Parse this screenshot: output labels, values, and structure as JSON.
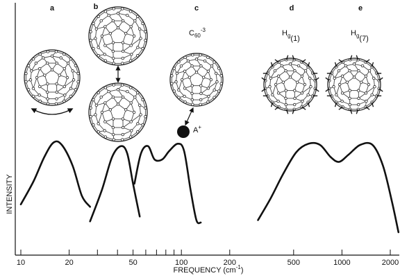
{
  "chart_data": {
    "type": "line",
    "x_label": {
      "text": "FREQUENCY (cm",
      "sup": "-1",
      "end": ")"
    },
    "y_label": "INTENSITY",
    "xscale": "log",
    "xlim": [
      10,
      2300
    ],
    "ylim": [
      0,
      1
    ],
    "xticks": [
      10,
      20,
      50,
      100,
      200,
      500,
      1000,
      2000
    ],
    "xminorticks": [
      30,
      40,
      60,
      70,
      80,
      90
    ],
    "color": "#111111",
    "series": [
      {
        "x": [
          10,
          12,
          14,
          16,
          18,
          21,
          24,
          27
        ],
        "values": [
          0.43,
          0.62,
          0.82,
          0.94,
          0.92,
          0.75,
          0.5,
          0.41
        ]
      },
      {
        "x": [
          27,
          32,
          37,
          42,
          46,
          50,
          55
        ],
        "values": [
          0.29,
          0.55,
          0.82,
          0.91,
          0.85,
          0.6,
          0.33
        ]
      },
      {
        "x": [
          51,
          56,
          62,
          68,
          76,
          84,
          95,
          104,
          114,
          124,
          132
        ],
        "values": [
          0.6,
          0.85,
          0.91,
          0.8,
          0.8,
          0.87,
          0.93,
          0.87,
          0.55,
          0.3,
          0.28
        ]
      },
      {
        "x": [
          300,
          360,
          430,
          520,
          620,
          730,
          850,
          960,
          1100,
          1300,
          1550,
          1800,
          2050,
          2250
        ],
        "values": [
          0.3,
          0.48,
          0.68,
          0.86,
          0.93,
          0.92,
          0.82,
          0.78,
          0.84,
          0.92,
          0.92,
          0.75,
          0.45,
          0.2
        ]
      }
    ],
    "panel_labels": [
      "a",
      "b",
      "c",
      "d",
      "e"
    ],
    "annotations": [
      {
        "text": "C",
        "sub": "60",
        "sup": "-3"
      },
      {
        "text": "H",
        "sub": "g",
        "end": "(1)"
      },
      {
        "text": "H",
        "sub": "g",
        "end": "(7)"
      },
      {
        "text": "A",
        "sup": "+"
      }
    ]
  }
}
